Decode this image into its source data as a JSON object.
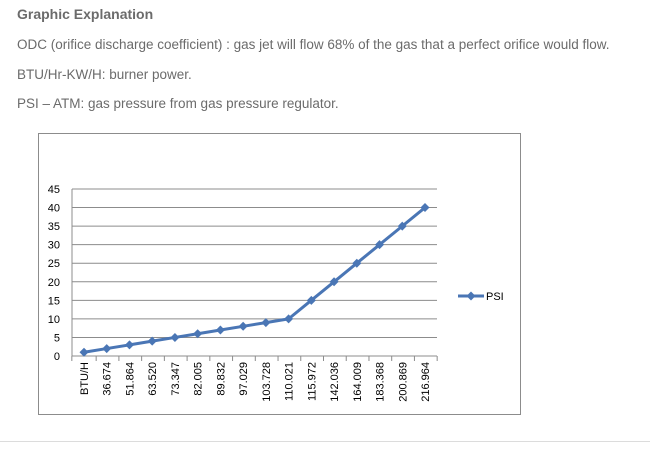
{
  "section": {
    "heading": "Graphic Explanation",
    "paragraphs": [
      "ODC (orifice discharge coefficient) : gas jet will flow 68% of the gas that a perfect orifice would flow.",
      "BTU/Hr-KW/H: burner power.",
      "PSI – ATM: gas pressure from gas pressure regulator."
    ]
  },
  "colors": {
    "series": "#4a76b5",
    "grid": "#8c8c8c",
    "text": "#6b6b6b"
  },
  "chart_data": {
    "type": "line",
    "categories": [
      "BTU/H",
      "36.674",
      "51.864",
      "63.520",
      "73.347",
      "82.005",
      "89.832",
      "97.029",
      "103.728",
      "110.021",
      "115.972",
      "142.036",
      "164.009",
      "183.368",
      "200.869",
      "216.964"
    ],
    "series": [
      {
        "name": "PSI",
        "values": [
          1,
          2,
          3,
          4,
          5,
          6,
          7,
          8,
          9,
          10,
          15,
          20,
          25,
          30,
          35,
          40
        ]
      }
    ],
    "yticks": [
      "0",
      "5",
      "10",
      "15",
      "20",
      "25",
      "30",
      "35",
      "40",
      "45"
    ],
    "ylim": [
      0,
      45
    ],
    "grid": true,
    "legend": "right",
    "marker": "diamond"
  }
}
